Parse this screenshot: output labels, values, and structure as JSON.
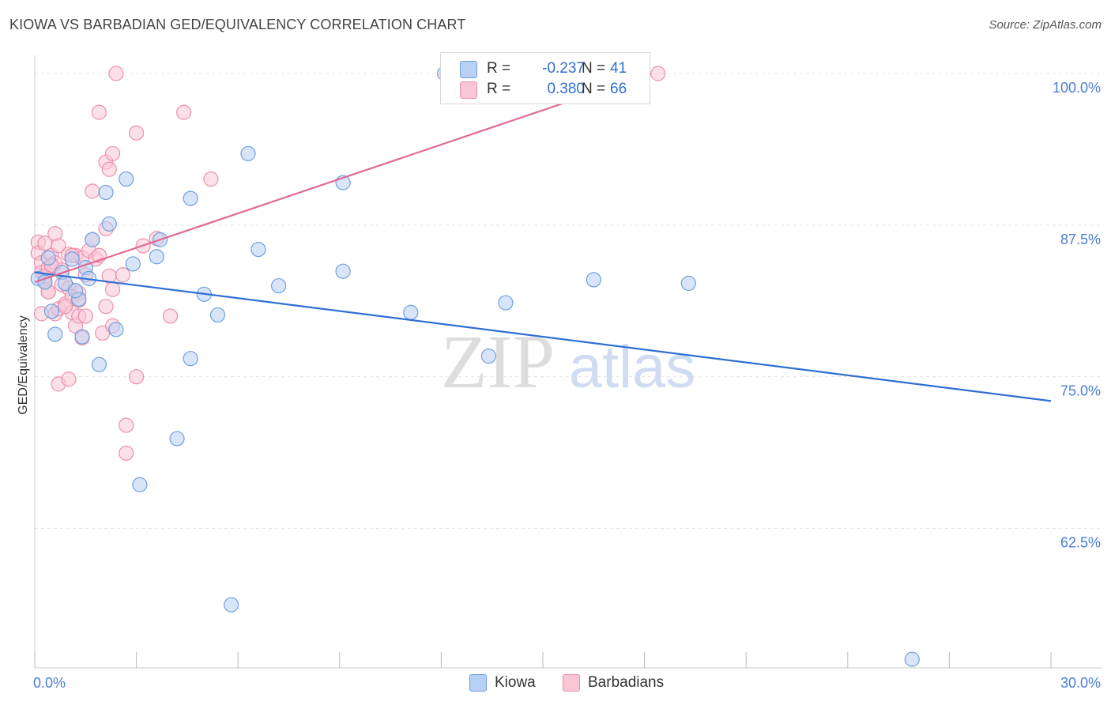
{
  "title": "KIOWA VS BARBADIAN GED/EQUIVALENCY CORRELATION CHART",
  "source": "Source: ZipAtlas.com",
  "watermark": {
    "zip": "ZIP",
    "atlas": "atlas"
  },
  "colors": {
    "kiowa_fill": "#b8d0f3",
    "kiowa_stroke": "#6f9fe0",
    "kiowa_line": "#2f6fd6",
    "barbadian_fill": "#f9c6d5",
    "barbadian_stroke": "#ec90ab",
    "barbadian_line": "#e06a93",
    "tick_label": "#4a7ed2",
    "grid": "#e4e4e4"
  },
  "legend": {
    "kiowa": {
      "r_label": "R =",
      "r_value": "-0.237",
      "n_label": "N =",
      "n_value": "41"
    },
    "barbadian": {
      "r_label": "R =",
      "r_value": "0.380",
      "n_label": "N =",
      "n_value": "66"
    }
  },
  "chart_data": {
    "type": "scatter",
    "title": "KIOWA VS BARBADIAN GED/EQUIVALENCY CORRELATION CHART",
    "xlabel": "",
    "ylabel": "GED/Equivalency",
    "xlim": [
      0,
      30
    ],
    "ylim": [
      51,
      101.5
    ],
    "x_tick_labels": [
      "0.0%",
      "30.0%"
    ],
    "y_ticks": [
      62.5,
      75.0,
      87.5,
      100.0
    ],
    "y_tick_labels": [
      "62.5%",
      "75.0%",
      "87.5%",
      "100.0%"
    ],
    "grid": true,
    "series": [
      {
        "name": "Kiowa",
        "trend": {
          "x": [
            0,
            30
          ],
          "y": [
            83.6,
            73.0
          ]
        },
        "points": [
          [
            0.1,
            83.1
          ],
          [
            0.4,
            84.8
          ],
          [
            0.6,
            78.5
          ],
          [
            0.8,
            83.6
          ],
          [
            0.9,
            82.7
          ],
          [
            1.1,
            84.7
          ],
          [
            1.3,
            81.4
          ],
          [
            1.4,
            78.3
          ],
          [
            1.5,
            84.0
          ],
          [
            1.6,
            83.1
          ],
          [
            1.7,
            86.3
          ],
          [
            1.9,
            76.0
          ],
          [
            2.1,
            90.2
          ],
          [
            2.2,
            87.6
          ],
          [
            2.4,
            78.9
          ],
          [
            2.7,
            91.3
          ],
          [
            2.9,
            84.3
          ],
          [
            3.1,
            66.1
          ],
          [
            3.6,
            84.9
          ],
          [
            3.7,
            86.3
          ],
          [
            4.2,
            69.9
          ],
          [
            4.6,
            89.7
          ],
          [
            4.6,
            76.5
          ],
          [
            5.0,
            81.8
          ],
          [
            5.4,
            80.1
          ],
          [
            5.8,
            56.2
          ],
          [
            6.3,
            93.4
          ],
          [
            6.6,
            85.5
          ],
          [
            7.2,
            82.5
          ],
          [
            9.1,
            83.7
          ],
          [
            9.1,
            91.0
          ],
          [
            11.1,
            80.3
          ],
          [
            12.1,
            100.0
          ],
          [
            13.4,
            76.7
          ],
          [
            13.9,
            81.1
          ],
          [
            16.5,
            83.0
          ],
          [
            19.3,
            82.7
          ],
          [
            25.9,
            51.7
          ],
          [
            0.3,
            82.8
          ],
          [
            0.5,
            80.4
          ],
          [
            1.2,
            82.1
          ]
        ]
      },
      {
        "name": "Barbadians",
        "trend": {
          "x": [
            0,
            18.2
          ],
          "y": [
            82.8,
            100.0
          ]
        },
        "points": [
          [
            0.1,
            86.1
          ],
          [
            0.1,
            85.2
          ],
          [
            0.2,
            84.4
          ],
          [
            0.2,
            83.6
          ],
          [
            0.3,
            82.9
          ],
          [
            0.3,
            86.0
          ],
          [
            0.4,
            84.0
          ],
          [
            0.4,
            82.0
          ],
          [
            0.5,
            85.0
          ],
          [
            0.5,
            84.1
          ],
          [
            0.6,
            80.2
          ],
          [
            0.6,
            86.8
          ],
          [
            0.7,
            85.8
          ],
          [
            0.7,
            80.6
          ],
          [
            0.7,
            74.4
          ],
          [
            0.8,
            83.8
          ],
          [
            0.8,
            82.6
          ],
          [
            0.9,
            81.0
          ],
          [
            1.0,
            85.1
          ],
          [
            1.0,
            82.3
          ],
          [
            1.0,
            74.8
          ],
          [
            1.1,
            80.3
          ],
          [
            1.1,
            81.6
          ],
          [
            1.2,
            79.2
          ],
          [
            1.2,
            85.0
          ],
          [
            1.3,
            81.9
          ],
          [
            1.3,
            80.0
          ],
          [
            1.4,
            78.2
          ],
          [
            1.4,
            84.8
          ],
          [
            1.5,
            83.4
          ],
          [
            1.6,
            85.4
          ],
          [
            1.7,
            86.3
          ],
          [
            1.7,
            90.3
          ],
          [
            1.8,
            84.7
          ],
          [
            1.9,
            96.8
          ],
          [
            2.0,
            78.6
          ],
          [
            2.1,
            92.7
          ],
          [
            2.1,
            87.2
          ],
          [
            2.2,
            92.1
          ],
          [
            2.2,
            83.3
          ],
          [
            2.3,
            93.4
          ],
          [
            2.3,
            79.2
          ],
          [
            2.3,
            82.2
          ],
          [
            2.4,
            100.0
          ],
          [
            2.6,
            83.4
          ],
          [
            2.7,
            71.0
          ],
          [
            2.7,
            68.7
          ],
          [
            3.0,
            95.1
          ],
          [
            3.0,
            75.0
          ],
          [
            3.2,
            85.8
          ],
          [
            3.6,
            86.4
          ],
          [
            4.0,
            80.0
          ],
          [
            4.4,
            96.8
          ],
          [
            5.2,
            91.3
          ],
          [
            18.4,
            100.0
          ],
          [
            0.2,
            80.2
          ],
          [
            0.3,
            83.3
          ],
          [
            0.4,
            82.0
          ],
          [
            0.6,
            84.4
          ],
          [
            0.9,
            80.8
          ],
          [
            1.1,
            85.0
          ],
          [
            1.3,
            81.3
          ],
          [
            1.5,
            80.0
          ],
          [
            1.9,
            85.0
          ],
          [
            2.1,
            80.8
          ],
          [
            0.5,
            84.2
          ]
        ]
      }
    ]
  }
}
